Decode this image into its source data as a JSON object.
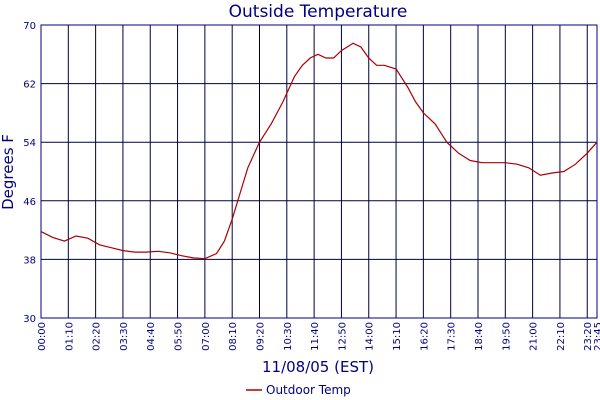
{
  "chart_data": {
    "type": "line",
    "title": "Outside Temperature",
    "xlabel": "11/08/05 (EST)",
    "ylabel": "Degrees F",
    "ylim": [
      30,
      70
    ],
    "yticks": [
      30,
      38,
      46,
      54,
      62,
      70
    ],
    "xticks": [
      "00:00",
      "01:10",
      "02:20",
      "03:30",
      "04:40",
      "05:50",
      "07:00",
      "08:10",
      "09:20",
      "10:30",
      "11:40",
      "12:50",
      "14:00",
      "15:10",
      "16:20",
      "17:30",
      "18:40",
      "19:50",
      "21:00",
      "22:10",
      "23:20",
      "23:45"
    ],
    "grid": true,
    "legend": "bottom-center",
    "colors": {
      "series": "#aa0000",
      "axes": "#000080",
      "grid": "#000040"
    },
    "series": [
      {
        "name": "Outdoor Temp",
        "x": [
          "00:00",
          "00:30",
          "01:00",
          "01:30",
          "02:00",
          "02:30",
          "03:00",
          "03:30",
          "04:00",
          "04:30",
          "05:00",
          "05:30",
          "06:00",
          "06:30",
          "07:00",
          "07:30",
          "07:50",
          "08:10",
          "08:30",
          "08:50",
          "09:20",
          "09:50",
          "10:20",
          "10:50",
          "11:10",
          "11:30",
          "11:50",
          "12:10",
          "12:30",
          "12:50",
          "13:20",
          "13:40",
          "14:00",
          "14:20",
          "14:40",
          "15:10",
          "15:40",
          "16:00",
          "16:20",
          "16:50",
          "17:20",
          "17:50",
          "18:20",
          "18:50",
          "19:20",
          "19:50",
          "20:20",
          "20:50",
          "21:20",
          "21:50",
          "22:20",
          "22:50",
          "23:20",
          "23:45"
        ],
        "values": [
          41.8,
          41.0,
          40.5,
          41.2,
          40.9,
          40.0,
          39.6,
          39.2,
          39.0,
          39.0,
          39.1,
          38.9,
          38.5,
          38.2,
          38.1,
          38.8,
          40.5,
          43.5,
          47.0,
          50.5,
          54.0,
          56.5,
          59.5,
          63.0,
          64.5,
          65.5,
          66.0,
          65.5,
          65.5,
          66.5,
          67.5,
          67.0,
          65.5,
          64.5,
          64.5,
          64.0,
          61.5,
          59.5,
          58.0,
          56.5,
          54.0,
          52.5,
          51.5,
          51.2,
          51.2,
          51.2,
          51.0,
          50.5,
          49.5,
          49.8,
          50.0,
          51.0,
          52.5,
          54.0
        ]
      }
    ]
  }
}
